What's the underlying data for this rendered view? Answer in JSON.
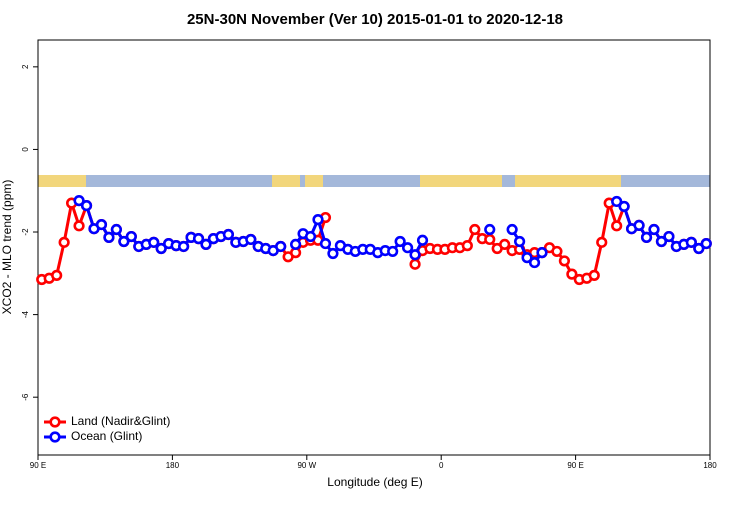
{
  "chart_data": {
    "type": "line",
    "title": "25N-30N November (Ver 10)   2015-01-01 to 2020-12-18",
    "x_label": "Longitude (deg E)",
    "y_label": "XCO2 - MLO trend (ppm)",
    "x": [
      92.5,
      97.5,
      102.5,
      107.5,
      112.5,
      117.5,
      122.5,
      127.5,
      132.5,
      137.5,
      142.5,
      147.5,
      152.5,
      157.5,
      162.5,
      167.5,
      172.5,
      177.5,
      182.5,
      187.5,
      192.5,
      197.5,
      202.5,
      207.5,
      212.5,
      217.5,
      222.5,
      227.5,
      232.5,
      237.5,
      242.5,
      247.5,
      252.5,
      257.5,
      262.5,
      267.5,
      272.5,
      277.5,
      282.5,
      287.5,
      292.5,
      297.5,
      302.5,
      307.5,
      312.5,
      317.5,
      322.5,
      327.5,
      332.5,
      337.5,
      342.5,
      347.5,
      352.5,
      357.5,
      362.5,
      367.5,
      372.5,
      377.5,
      382.5,
      387.5,
      392.5,
      397.5,
      402.5,
      407.5,
      412.5,
      417.5,
      422.5,
      427.5,
      432.5,
      437.5,
      442.5,
      447.5,
      452.5,
      457.5,
      462.5,
      467.5,
      472.5,
      477.5,
      482.5,
      487.5,
      492.5,
      497.5,
      502.5,
      507.5,
      512.5,
      517.5,
      522.5,
      527.5,
      532.5,
      537.5
    ],
    "series": [
      {
        "name": "Land (Nadir&Glint)",
        "color": "#ff0000",
        "values": [
          -3.15,
          -3.12,
          -3.05,
          -2.25,
          -1.3,
          -1.85,
          -1.36,
          -1.92,
          -1.82,
          -2.13,
          -1.94,
          -2.23,
          -2.11,
          -2.35,
          -2.3,
          -2.25,
          -2.4,
          -2.28,
          -2.33,
          -2.35,
          -2.13,
          -2.16,
          -2.3,
          -2.16,
          -2.11,
          -2.06,
          -2.25,
          -2.23,
          -2.18,
          -2.35,
          -2.4,
          -2.45,
          -2.35,
          -2.6,
          -2.5,
          -2.25,
          -2.2,
          -2.2,
          -1.65,
          null,
          null,
          null,
          null,
          null,
          null,
          null,
          null,
          null,
          null,
          null,
          -2.78,
          -2.45,
          -2.4,
          -2.42,
          -2.42,
          -2.38,
          -2.38,
          -2.33,
          -1.94,
          -2.16,
          -2.18,
          -2.4,
          -2.3,
          -2.45,
          -2.42,
          -2.55,
          -2.5,
          -2.5,
          -2.38,
          -2.47,
          -2.7,
          -3.02,
          -3.15,
          -3.12,
          -3.05,
          -2.25,
          -1.3,
          -1.85,
          -1.38,
          -1.92,
          -1.84,
          -2.13,
          -1.94,
          -2.23,
          -2.11,
          -2.35,
          -2.3,
          -2.25,
          -2.4,
          -2.28
        ]
      },
      {
        "name": "Ocean (Glint)",
        "color": "#0000ff",
        "values": [
          null,
          null,
          null,
          null,
          null,
          -1.24,
          -1.36,
          -1.92,
          -1.82,
          -2.13,
          -1.94,
          -2.23,
          -2.11,
          -2.35,
          -2.3,
          -2.25,
          -2.4,
          -2.28,
          -2.33,
          -2.35,
          -2.13,
          -2.16,
          -2.3,
          -2.16,
          -2.11,
          -2.06,
          -2.25,
          -2.23,
          -2.18,
          -2.35,
          -2.4,
          -2.45,
          -2.35,
          null,
          -2.3,
          -2.04,
          -2.11,
          -1.7,
          -2.28,
          -2.52,
          -2.33,
          -2.42,
          -2.47,
          -2.42,
          -2.42,
          -2.5,
          -2.45,
          -2.47,
          -2.23,
          -2.38,
          -2.55,
          -2.2,
          null,
          null,
          null,
          null,
          null,
          null,
          null,
          null,
          -1.94,
          null,
          null,
          -1.94,
          -2.23,
          -2.62,
          -2.74,
          -2.5,
          null,
          null,
          null,
          null,
          null,
          null,
          null,
          null,
          null,
          -1.26,
          -1.38,
          -1.92,
          -1.84,
          -2.13,
          -1.94,
          -2.23,
          -2.11,
          -2.35,
          -2.3,
          -2.25,
          -2.4,
          -2.28
        ]
      }
    ],
    "xlim": [
      90,
      540
    ],
    "xticks": [
      {
        "value": 90,
        "label": "90 E"
      },
      180,
      {
        "value": 270,
        "label": "90 W"
      },
      {
        "value": 360,
        "label": "0"
      },
      {
        "value": 450,
        "label": "90 E"
      },
      {
        "value": 540,
        "label": "180"
      }
    ],
    "ylim": [
      -7.4,
      2.65
    ],
    "yticks": [
      -6,
      -4,
      -2,
      0,
      2
    ],
    "legend": "bottom-left"
  }
}
